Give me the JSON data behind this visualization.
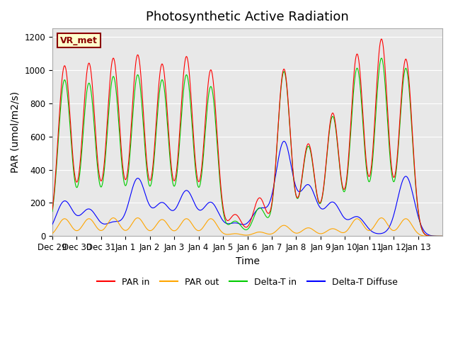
{
  "title": "Photosynthetic Active Radiation",
  "ylabel": "PAR (umol/m2/s)",
  "xlabel": "Time",
  "annotation": "VR_met",
  "bg_color": "#e8e8e8",
  "fig_color": "#ffffff",
  "ylim": [
    0,
    1250
  ],
  "yticks": [
    0,
    200,
    400,
    600,
    800,
    1000,
    1200
  ],
  "xtick_labels": [
    "Dec 29",
    "Dec 30",
    "Dec 31",
    "Jan 1",
    "Jan 2",
    "Jan 3",
    "Jan 4",
    "Jan 5",
    "Jan 6",
    "Jan 7",
    "Jan 8",
    "Jan 9",
    "Jan 10",
    "Jan 11",
    "Jan 12",
    "Jan 13"
  ],
  "line_colors": {
    "PAR in": "#ff0000",
    "PAR out": "#ffa500",
    "Delta-T in": "#00cc00",
    "Delta-T Diffuse": "#0000ff"
  },
  "legend_labels": [
    "PAR in",
    "PAR out",
    "Delta-T in",
    "Delta-T Diffuse"
  ],
  "title_fontsize": 13,
  "label_fontsize": 10,
  "tick_fontsize": 8.5,
  "par_in_peaks": [
    1025,
    1040,
    1070,
    1090,
    1035,
    1080,
    1000,
    130,
    230,
    1005,
    555,
    740,
    1095,
    1185,
    1065,
    0
  ],
  "par_out_peaks": [
    105,
    105,
    110,
    110,
    100,
    105,
    105,
    15,
    25,
    65,
    50,
    45,
    105,
    110,
    105,
    0
  ],
  "delta_in_peaks": [
    940,
    920,
    960,
    970,
    940,
    970,
    900,
    90,
    170,
    990,
    540,
    720,
    1010,
    1070,
    1010,
    0
  ],
  "delta_diff_peaks": [
    210,
    160,
    80,
    345,
    195,
    270,
    200,
    75,
    160,
    565,
    300,
    200,
    115,
    10,
    360,
    0
  ]
}
